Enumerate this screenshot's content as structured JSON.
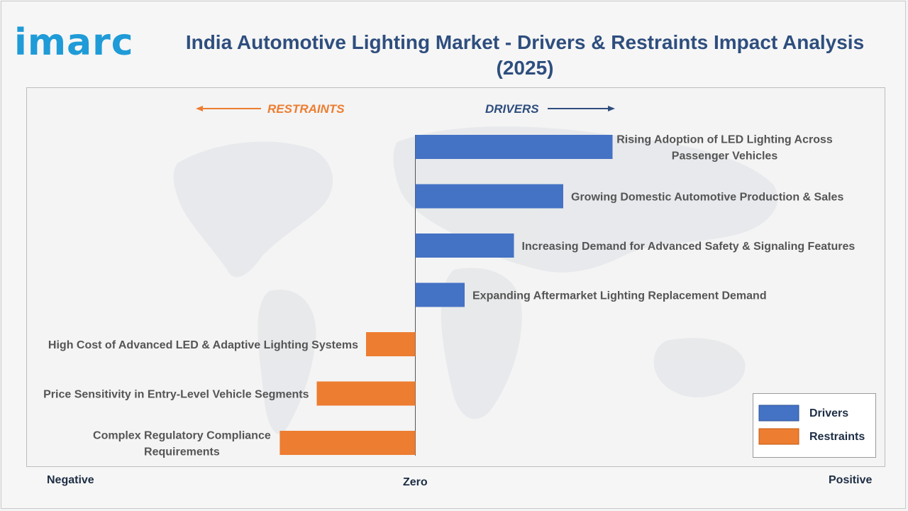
{
  "header": {
    "logo_text": "imarc",
    "title": "India Automotive Lighting Market - Drivers & Restraints Impact Analysis (2025)"
  },
  "direction_labels": {
    "restraints": "RESTRAINTS",
    "drivers": "DRIVERS"
  },
  "axis": {
    "negative": "Negative",
    "zero": "Zero",
    "positive": "Positive"
  },
  "legend": {
    "drivers": "Drivers",
    "restraints": "Restraints",
    "placement": "bottom-right"
  },
  "colors": {
    "drivers": "#4472c4",
    "restraints": "#ed7d31",
    "title": "#2e4e7e",
    "logo": "#1f9bd7",
    "restraints_text": "#ed7d31",
    "drivers_text": "#2e4e7e"
  },
  "chart_data": {
    "type": "bar",
    "orientation": "horizontal",
    "title": "India Automotive Lighting Market - Drivers & Restraints Impact Analysis (2025)",
    "xlim": [
      -4,
      6
    ],
    "categories": [
      "Rising Adoption of LED Lighting Across Passenger Vehicles",
      "Growing Domestic Automotive Production & Sales",
      "Increasing Demand for Advanced Safety & Signaling Features",
      "Expanding Aftermarket Lighting Replacement Demand",
      "High Cost of Advanced LED & Adaptive Lighting Systems",
      "Price Sensitivity in Entry-Level Vehicle Segments",
      "Complex Regulatory Compliance Requirements"
    ],
    "label_lines": [
      [
        "Rising Adoption of LED Lighting Across",
        "Passenger Vehicles"
      ],
      [
        "Growing Domestic Automotive Production & Sales"
      ],
      [
        "Increasing Demand for Advanced Safety & Signaling Features"
      ],
      [
        "Expanding Aftermarket Lighting Replacement Demand"
      ],
      [
        "High Cost of Advanced LED & Adaptive Lighting Systems"
      ],
      [
        "Price Sensitivity in Entry-Level Vehicle Segments"
      ],
      [
        "Complex Regulatory Compliance",
        "Requirements"
      ]
    ],
    "series": [
      {
        "name": "Drivers",
        "values": [
          4,
          3,
          2,
          1,
          null,
          null,
          null
        ]
      },
      {
        "name": "Restraints",
        "values": [
          null,
          null,
          null,
          null,
          -1,
          -2,
          -2.75
        ]
      }
    ],
    "grid": false
  }
}
